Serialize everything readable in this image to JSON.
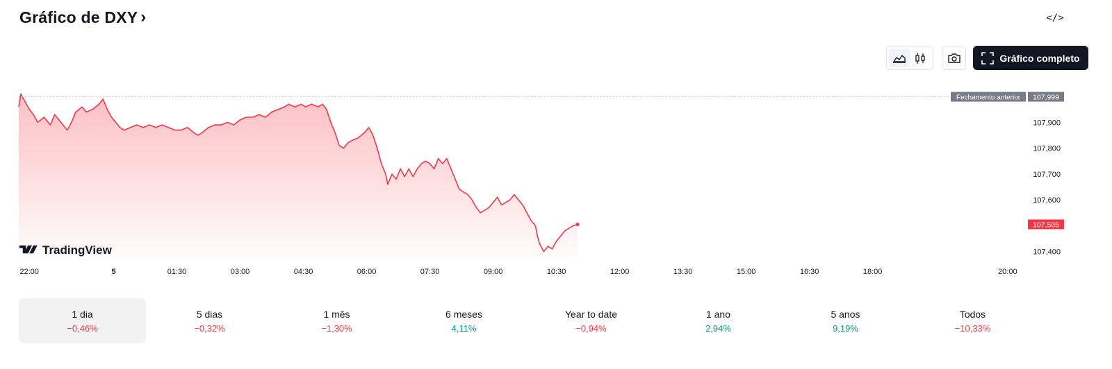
{
  "header": {
    "title": "Gráfico de DXY",
    "chevron": "›",
    "embed_icon": "</>"
  },
  "toolbar": {
    "line_icon": "area-chart-icon",
    "candle_icon": "candlestick-icon",
    "camera_icon": "camera-icon",
    "full_chart_label": "Gráfico completo"
  },
  "branding": {
    "logo_text": "TradingView"
  },
  "chart_data": {
    "type": "area",
    "previous_close_label": "Fechamento anterior",
    "previous_close_value": "107,999",
    "previous_close": 107.999,
    "last_value": 107.505,
    "last_value_label": "107,505",
    "y_ticks": [
      "107,900",
      "107,800",
      "107,700",
      "107,600",
      "107,400"
    ],
    "y_tick_values": [
      107.9,
      107.8,
      107.7,
      107.6,
      107.4
    ],
    "ylim": [
      107.38,
      108.03
    ],
    "x_ticks": [
      "22:00",
      "5",
      "01:30",
      "03:00",
      "04:30",
      "06:00",
      "07:30",
      "09:00",
      "10:30",
      "12:00",
      "13:30",
      "15:00",
      "16:30",
      "18:00",
      "20:00"
    ],
    "x_tick_hours": [
      0,
      2,
      3.5,
      5,
      6.5,
      8,
      9.5,
      11,
      12.5,
      14,
      15.5,
      17,
      18.5,
      20,
      23.2
    ],
    "xlim": [
      -0.25,
      23.5
    ],
    "series": [
      {
        "values": [
          [
            -0.25,
            107.96
          ],
          [
            -0.2,
            108.01
          ],
          [
            -0.1,
            107.98
          ],
          [
            0.0,
            107.95
          ],
          [
            0.1,
            107.93
          ],
          [
            0.2,
            107.9
          ],
          [
            0.35,
            107.92
          ],
          [
            0.5,
            107.89
          ],
          [
            0.6,
            107.93
          ],
          [
            0.75,
            107.9
          ],
          [
            0.9,
            107.87
          ],
          [
            1.0,
            107.9
          ],
          [
            1.1,
            107.94
          ],
          [
            1.25,
            107.96
          ],
          [
            1.35,
            107.94
          ],
          [
            1.5,
            107.95
          ],
          [
            1.65,
            107.97
          ],
          [
            1.75,
            107.99
          ],
          [
            1.85,
            107.95
          ],
          [
            1.95,
            107.92
          ],
          [
            2.05,
            107.9
          ],
          [
            2.15,
            107.88
          ],
          [
            2.25,
            107.87
          ],
          [
            2.4,
            107.88
          ],
          [
            2.55,
            107.89
          ],
          [
            2.7,
            107.88
          ],
          [
            2.85,
            107.89
          ],
          [
            3.0,
            107.88
          ],
          [
            3.15,
            107.89
          ],
          [
            3.3,
            107.88
          ],
          [
            3.45,
            107.87
          ],
          [
            3.6,
            107.87
          ],
          [
            3.75,
            107.88
          ],
          [
            3.9,
            107.86
          ],
          [
            4.0,
            107.85
          ],
          [
            4.1,
            107.86
          ],
          [
            4.25,
            107.88
          ],
          [
            4.4,
            107.89
          ],
          [
            4.55,
            107.89
          ],
          [
            4.7,
            107.9
          ],
          [
            4.85,
            107.89
          ],
          [
            5.0,
            107.91
          ],
          [
            5.15,
            107.92
          ],
          [
            5.3,
            107.92
          ],
          [
            5.45,
            107.93
          ],
          [
            5.6,
            107.92
          ],
          [
            5.75,
            107.94
          ],
          [
            5.9,
            107.95
          ],
          [
            6.05,
            107.96
          ],
          [
            6.15,
            107.97
          ],
          [
            6.3,
            107.96
          ],
          [
            6.45,
            107.97
          ],
          [
            6.55,
            107.96
          ],
          [
            6.7,
            107.97
          ],
          [
            6.85,
            107.96
          ],
          [
            6.95,
            107.97
          ],
          [
            7.05,
            107.95
          ],
          [
            7.15,
            107.9
          ],
          [
            7.25,
            107.86
          ],
          [
            7.35,
            107.81
          ],
          [
            7.45,
            107.8
          ],
          [
            7.55,
            107.82
          ],
          [
            7.65,
            107.83
          ],
          [
            7.8,
            107.84
          ],
          [
            7.95,
            107.86
          ],
          [
            8.05,
            107.88
          ],
          [
            8.15,
            107.85
          ],
          [
            8.25,
            107.8
          ],
          [
            8.35,
            107.74
          ],
          [
            8.45,
            107.7
          ],
          [
            8.5,
            107.66
          ],
          [
            8.6,
            107.7
          ],
          [
            8.7,
            107.68
          ],
          [
            8.8,
            107.72
          ],
          [
            8.9,
            107.69
          ],
          [
            9.0,
            107.72
          ],
          [
            9.1,
            107.69
          ],
          [
            9.2,
            107.72
          ],
          [
            9.3,
            107.74
          ],
          [
            9.4,
            107.75
          ],
          [
            9.5,
            107.74
          ],
          [
            9.6,
            107.72
          ],
          [
            9.7,
            107.76
          ],
          [
            9.8,
            107.74
          ],
          [
            9.9,
            107.76
          ],
          [
            10.0,
            107.72
          ],
          [
            10.1,
            107.68
          ],
          [
            10.2,
            107.64
          ],
          [
            10.3,
            107.63
          ],
          [
            10.4,
            107.62
          ],
          [
            10.5,
            107.6
          ],
          [
            10.6,
            107.57
          ],
          [
            10.7,
            107.55
          ],
          [
            10.8,
            107.56
          ],
          [
            10.9,
            107.57
          ],
          [
            11.0,
            107.59
          ],
          [
            11.1,
            107.61
          ],
          [
            11.2,
            107.58
          ],
          [
            11.3,
            107.59
          ],
          [
            11.4,
            107.6
          ],
          [
            11.5,
            107.62
          ],
          [
            11.6,
            107.6
          ],
          [
            11.7,
            107.58
          ],
          [
            11.8,
            107.55
          ],
          [
            11.9,
            107.52
          ],
          [
            12.0,
            107.5
          ],
          [
            12.05,
            107.46
          ],
          [
            12.1,
            107.43
          ],
          [
            12.2,
            107.4
          ],
          [
            12.3,
            107.42
          ],
          [
            12.4,
            107.41
          ],
          [
            12.5,
            107.44
          ],
          [
            12.6,
            107.46
          ],
          [
            12.7,
            107.48
          ],
          [
            12.8,
            107.49
          ],
          [
            12.9,
            107.5
          ],
          [
            13.0,
            107.505
          ]
        ]
      }
    ]
  },
  "periods": [
    {
      "label": "1 dia",
      "change": "−0,46%",
      "trend": "neg",
      "active": true
    },
    {
      "label": "5 dias",
      "change": "−0,32%",
      "trend": "neg",
      "active": false
    },
    {
      "label": "1 mês",
      "change": "−1,30%",
      "trend": "neg",
      "active": false
    },
    {
      "label": "6 meses",
      "change": "4,11%",
      "trend": "pos",
      "active": false
    },
    {
      "label": "Year to date",
      "change": "−0,94%",
      "trend": "neg",
      "active": false
    },
    {
      "label": "1 ano",
      "change": "2,94%",
      "trend": "pos",
      "active": false
    },
    {
      "label": "5 anos",
      "change": "9,19%",
      "trend": "pos",
      "active": false
    },
    {
      "label": "Todos",
      "change": "−10,33%",
      "trend": "neg",
      "active": false
    }
  ],
  "colors": {
    "line": "#f23645",
    "positive": "#089981",
    "negative": "#f23645",
    "prev_close_badge": "#787b86"
  }
}
